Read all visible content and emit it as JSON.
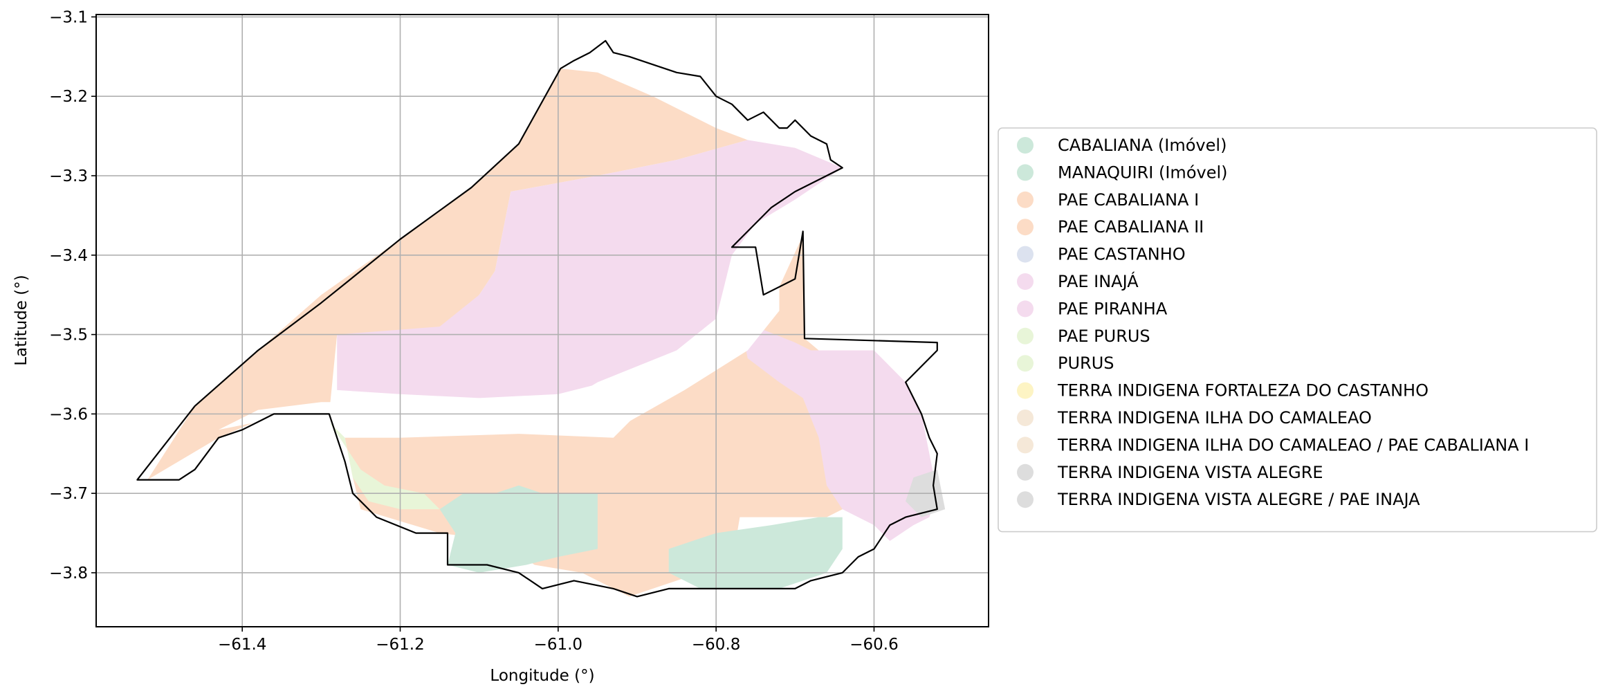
{
  "chart_data": {
    "type": "map",
    "xlabel": "Longitude (°)",
    "ylabel": "Latitude (°)",
    "xlim": [
      -61.585,
      -60.455
    ],
    "ylim": [
      -3.868,
      -3.097
    ],
    "xticks": [
      -61.4,
      -61.2,
      -61.0,
      -60.8,
      -60.6
    ],
    "yticks": [
      -3.1,
      -3.2,
      -3.3,
      -3.4,
      -3.5,
      -3.6,
      -3.7,
      -3.8
    ],
    "xtick_labels": [
      "−61.4",
      "−61.2",
      "−61.0",
      "−60.8",
      "−60.6"
    ],
    "ytick_labels": [
      "−3.1",
      "−3.2",
      "−3.3",
      "−3.4",
      "−3.5",
      "−3.6",
      "−3.7",
      "−3.8"
    ],
    "grid": true,
    "legend_position": "right",
    "legend": [
      {
        "label": "CABALIANA (Imóvel)",
        "color": "#cce8da"
      },
      {
        "label": "MANAQUIRI (Imóvel)",
        "color": "#cce8da"
      },
      {
        "label": "PAE CABALIANA I",
        "color": "#fcdcc6"
      },
      {
        "label": "PAE CABALIANA II",
        "color": "#fcdcc6"
      },
      {
        "label": "PAE CASTANHO",
        "color": "#dce2ef"
      },
      {
        "label": "PAE INAJÁ",
        "color": "#f4dbee"
      },
      {
        "label": "PAE PIRANHA",
        "color": "#f4dbee"
      },
      {
        "label": "PAE PURUS",
        "color": "#e8f5d8"
      },
      {
        "label": "PURUS",
        "color": "#e8f5d8"
      },
      {
        "label": "TERRA INDIGENA FORTALEZA DO CASTANHO",
        "color": "#fdf4c4"
      },
      {
        "label": "TERRA INDIGENA ILHA DO  CAMALEAO",
        "color": "#f5e8d8"
      },
      {
        "label": "TERRA INDIGENA ILHA DO  CAMALEAO / PAE CABALIANA I",
        "color": "#f5e8d8"
      },
      {
        "label": "TERRA INDIGENA VISTA ALEGRE",
        "color": "#dddddd"
      },
      {
        "label": "TERRA INDIGENA VISTA ALEGRE / PAE INAJA",
        "color": "#dddddd"
      }
    ],
    "regions": [
      {
        "name": "PAE CABALIANA I",
        "color": "#fcdcc6",
        "coords": [
          [
            -61.52,
            -3.683
          ],
          [
            -61.46,
            -3.59
          ],
          [
            -61.38,
            -3.52
          ],
          [
            -61.3,
            -3.45
          ],
          [
            -61.2,
            -3.38
          ],
          [
            -61.11,
            -3.315
          ],
          [
            -61.05,
            -3.26
          ],
          [
            -60.997,
            -3.165
          ],
          [
            -60.95,
            -3.17
          ],
          [
            -60.88,
            -3.2
          ],
          [
            -60.8,
            -3.24
          ],
          [
            -60.76,
            -3.255
          ],
          [
            -60.85,
            -3.28
          ],
          [
            -60.95,
            -3.3
          ],
          [
            -61.06,
            -3.32
          ],
          [
            -61.08,
            -3.42
          ],
          [
            -61.1,
            -3.45
          ],
          [
            -61.15,
            -3.5
          ],
          [
            -61.28,
            -3.5
          ],
          [
            -61.29,
            -3.6
          ],
          [
            -61.32,
            -3.6
          ],
          [
            -61.36,
            -3.6
          ],
          [
            -61.43,
            -3.63
          ],
          [
            -61.52,
            -3.683
          ]
        ]
      },
      {
        "name": "PAE CABALIANA II",
        "color": "#fcdcc6",
        "coords": [
          [
            -61.27,
            -3.63
          ],
          [
            -61.2,
            -3.63
          ],
          [
            -61.05,
            -3.625
          ],
          [
            -60.93,
            -3.63
          ],
          [
            -60.88,
            -3.58
          ],
          [
            -60.81,
            -3.52
          ],
          [
            -60.76,
            -3.49
          ],
          [
            -60.72,
            -3.44
          ],
          [
            -60.69,
            -3.375
          ],
          [
            -60.688,
            -3.505
          ],
          [
            -60.67,
            -3.52
          ],
          [
            -60.62,
            -3.56
          ],
          [
            -60.61,
            -3.63
          ],
          [
            -60.6,
            -3.7
          ],
          [
            -60.66,
            -3.73
          ],
          [
            -60.77,
            -3.73
          ],
          [
            -60.78,
            -3.79
          ],
          [
            -60.82,
            -3.8
          ],
          [
            -60.88,
            -3.82
          ],
          [
            -60.91,
            -3.83
          ],
          [
            -60.97,
            -3.8
          ],
          [
            -61.03,
            -3.79
          ],
          [
            -61.07,
            -3.76
          ],
          [
            -61.15,
            -3.75
          ],
          [
            -61.25,
            -3.72
          ],
          [
            -61.26,
            -3.68
          ],
          [
            -61.27,
            -3.63
          ]
        ]
      },
      {
        "name": "PAE INAJÁ",
        "color": "#f4dbee",
        "coords": [
          [
            -61.28,
            -3.5
          ],
          [
            -61.15,
            -3.49
          ],
          [
            -61.1,
            -3.45
          ],
          [
            -61.08,
            -3.42
          ],
          [
            -61.06,
            -3.32
          ],
          [
            -60.95,
            -3.3
          ],
          [
            -60.85,
            -3.28
          ],
          [
            -60.76,
            -3.255
          ],
          [
            -60.7,
            -3.265
          ],
          [
            -60.64,
            -3.29
          ],
          [
            -60.7,
            -3.33
          ],
          [
            -60.75,
            -3.36
          ],
          [
            -60.78,
            -3.4
          ],
          [
            -60.8,
            -3.48
          ],
          [
            -60.85,
            -3.52
          ],
          [
            -60.95,
            -3.56
          ],
          [
            -61.0,
            -3.59
          ],
          [
            -61.1,
            -3.58
          ],
          [
            -61.2,
            -3.575
          ],
          [
            -61.28,
            -3.57
          ],
          [
            -61.28,
            -3.5
          ]
        ]
      },
      {
        "name": "PAE PIRANHA",
        "color": "#f4dbee",
        "coords": [
          [
            -60.77,
            -3.48
          ],
          [
            -60.76,
            -3.53
          ],
          [
            -60.72,
            -3.56
          ],
          [
            -60.69,
            -3.58
          ],
          [
            -60.67,
            -3.63
          ],
          [
            -60.66,
            -3.69
          ],
          [
            -60.64,
            -3.72
          ],
          [
            -60.6,
            -3.74
          ],
          [
            -60.58,
            -3.76
          ],
          [
            -60.55,
            -3.74
          ],
          [
            -60.53,
            -3.73
          ],
          [
            -60.52,
            -3.7
          ],
          [
            -60.53,
            -3.65
          ],
          [
            -60.54,
            -3.6
          ],
          [
            -60.56,
            -3.56
          ],
          [
            -60.6,
            -3.52
          ],
          [
            -60.68,
            -3.52
          ],
          [
            -60.7,
            -3.51
          ],
          [
            -60.75,
            -3.49
          ],
          [
            -60.77,
            -3.48
          ]
        ]
      },
      {
        "name": "MANAQUIRI (Imóvel)",
        "color": "#cce8da",
        "coords": [
          [
            -61.15,
            -3.72
          ],
          [
            -61.13,
            -3.75
          ],
          [
            -61.14,
            -3.79
          ],
          [
            -61.1,
            -3.8
          ],
          [
            -61.04,
            -3.79
          ],
          [
            -61.0,
            -3.78
          ],
          [
            -60.95,
            -3.77
          ],
          [
            -60.95,
            -3.7
          ],
          [
            -61.02,
            -3.7
          ],
          [
            -61.05,
            -3.69
          ],
          [
            -61.08,
            -3.7
          ],
          [
            -61.12,
            -3.7
          ],
          [
            -61.15,
            -3.72
          ]
        ]
      },
      {
        "name": "CABALIANA (Imóvel)",
        "color": "#cce8da",
        "coords": [
          [
            -60.86,
            -3.77
          ],
          [
            -60.8,
            -3.75
          ],
          [
            -60.73,
            -3.74
          ],
          [
            -60.67,
            -3.73
          ],
          [
            -60.64,
            -3.73
          ],
          [
            -60.64,
            -3.77
          ],
          [
            -60.66,
            -3.8
          ],
          [
            -60.72,
            -3.82
          ],
          [
            -60.76,
            -3.82
          ],
          [
            -60.82,
            -3.82
          ],
          [
            -60.86,
            -3.8
          ],
          [
            -60.86,
            -3.77
          ]
        ]
      },
      {
        "name": "PAE PURUS",
        "color": "#e8f5d8",
        "coords": [
          [
            -61.29,
            -3.61
          ],
          [
            -61.27,
            -3.63
          ],
          [
            -61.26,
            -3.68
          ],
          [
            -61.24,
            -3.71
          ],
          [
            -61.2,
            -3.72
          ],
          [
            -61.15,
            -3.72
          ],
          [
            -61.17,
            -3.7
          ],
          [
            -61.22,
            -3.69
          ],
          [
            -61.25,
            -3.67
          ],
          [
            -61.27,
            -3.64
          ],
          [
            -61.29,
            -3.61
          ]
        ]
      },
      {
        "name": "TERRA INDIGENA VISTA ALEGRE",
        "color": "#dddddd",
        "coords": [
          [
            -60.52,
            -3.67
          ],
          [
            -60.55,
            -3.68
          ],
          [
            -60.56,
            -3.71
          ],
          [
            -60.54,
            -3.73
          ],
          [
            -60.51,
            -3.72
          ],
          [
            -60.52,
            -3.67
          ]
        ]
      }
    ],
    "boundary": [
      [
        -61.533,
        -3.683
      ],
      [
        -61.46,
        -3.59
      ],
      [
        -61.38,
        -3.52
      ],
      [
        -61.3,
        -3.46
      ],
      [
        -61.2,
        -3.38
      ],
      [
        -61.11,
        -3.315
      ],
      [
        -61.05,
        -3.26
      ],
      [
        -60.997,
        -3.165
      ],
      [
        -60.98,
        -3.155
      ],
      [
        -60.96,
        -3.145
      ],
      [
        -60.94,
        -3.13
      ],
      [
        -60.93,
        -3.145
      ],
      [
        -60.91,
        -3.15
      ],
      [
        -60.88,
        -3.16
      ],
      [
        -60.85,
        -3.17
      ],
      [
        -60.82,
        -3.175
      ],
      [
        -60.8,
        -3.2
      ],
      [
        -60.78,
        -3.21
      ],
      [
        -60.76,
        -3.23
      ],
      [
        -60.74,
        -3.22
      ],
      [
        -60.72,
        -3.24
      ],
      [
        -60.71,
        -3.24
      ],
      [
        -60.7,
        -3.23
      ],
      [
        -60.68,
        -3.25
      ],
      [
        -60.66,
        -3.26
      ],
      [
        -60.655,
        -3.28
      ],
      [
        -60.64,
        -3.29
      ],
      [
        -60.66,
        -3.3
      ],
      [
        -60.7,
        -3.32
      ],
      [
        -60.73,
        -3.34
      ],
      [
        -60.76,
        -3.37
      ],
      [
        -60.78,
        -3.39
      ],
      [
        -60.75,
        -3.39
      ],
      [
        -60.74,
        -3.45
      ],
      [
        -60.7,
        -3.43
      ],
      [
        -60.69,
        -3.37
      ],
      [
        -60.688,
        -3.505
      ],
      [
        -60.52,
        -3.51
      ],
      [
        -60.52,
        -3.52
      ],
      [
        -60.56,
        -3.56
      ],
      [
        -60.55,
        -3.58
      ],
      [
        -60.54,
        -3.6
      ],
      [
        -60.53,
        -3.63
      ],
      [
        -60.52,
        -3.65
      ],
      [
        -60.525,
        -3.69
      ],
      [
        -60.52,
        -3.72
      ],
      [
        -60.56,
        -3.73
      ],
      [
        -60.58,
        -3.74
      ],
      [
        -60.6,
        -3.77
      ],
      [
        -60.62,
        -3.78
      ],
      [
        -60.64,
        -3.8
      ],
      [
        -60.68,
        -3.81
      ],
      [
        -60.7,
        -3.82
      ],
      [
        -60.76,
        -3.82
      ],
      [
        -60.8,
        -3.82
      ],
      [
        -60.86,
        -3.82
      ],
      [
        -60.9,
        -3.83
      ],
      [
        -60.93,
        -3.82
      ],
      [
        -60.98,
        -3.81
      ],
      [
        -61.02,
        -3.82
      ],
      [
        -61.05,
        -3.8
      ],
      [
        -61.09,
        -3.79
      ],
      [
        -61.14,
        -3.79
      ],
      [
        -61.14,
        -3.75
      ],
      [
        -61.18,
        -3.75
      ],
      [
        -61.23,
        -3.73
      ],
      [
        -61.26,
        -3.7
      ],
      [
        -61.27,
        -3.66
      ],
      [
        -61.29,
        -3.6
      ],
      [
        -61.32,
        -3.6
      ],
      [
        -61.36,
        -3.6
      ],
      [
        -61.4,
        -3.62
      ],
      [
        -61.43,
        -3.63
      ],
      [
        -61.46,
        -3.67
      ],
      [
        -61.48,
        -3.683
      ],
      [
        -61.533,
        -3.683
      ]
    ],
    "river_channel": [
      [
        -61.43,
        -3.62
      ],
      [
        -61.38,
        -3.595
      ],
      [
        -61.3,
        -3.585
      ],
      [
        -61.2,
        -3.585
      ],
      [
        -61.1,
        -3.58
      ],
      [
        -61.0,
        -3.575
      ],
      [
        -60.9,
        -3.55
      ],
      [
        -60.82,
        -3.51
      ],
      [
        -60.77,
        -3.47
      ],
      [
        -60.75,
        -3.4
      ],
      [
        -60.72,
        -3.41
      ],
      [
        -60.72,
        -3.47
      ],
      [
        -60.76,
        -3.52
      ],
      [
        -60.84,
        -3.57
      ],
      [
        -60.92,
        -3.615
      ],
      [
        -61.0,
        -3.615
      ],
      [
        -61.1,
        -3.61
      ],
      [
        -61.2,
        -3.61
      ],
      [
        -61.3,
        -3.605
      ],
      [
        -61.38,
        -3.61
      ],
      [
        -61.43,
        -3.62
      ]
    ]
  }
}
